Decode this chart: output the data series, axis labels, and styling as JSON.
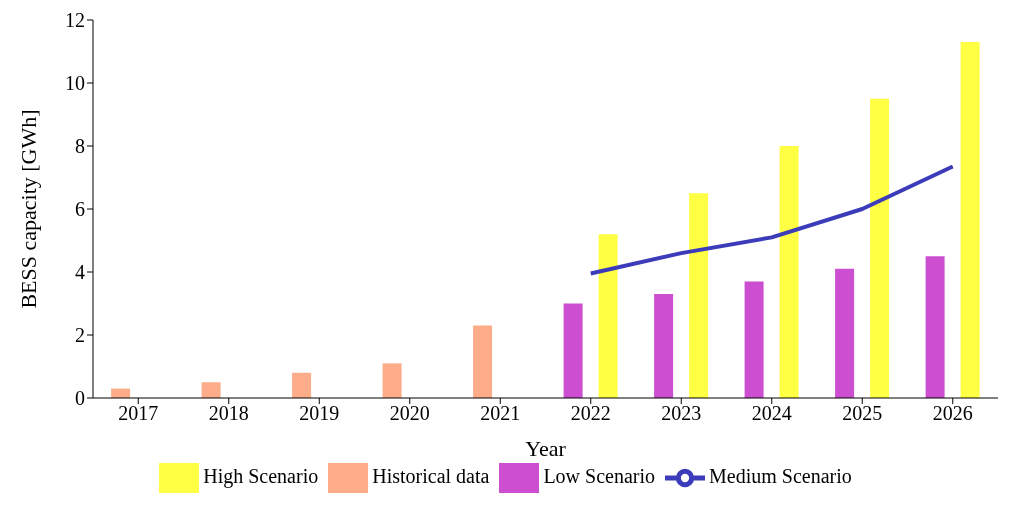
{
  "chart_data": {
    "type": "bar",
    "xlabel": "Year",
    "ylabel": "BESS capacity [GWh]",
    "categories": [
      "2017",
      "2018",
      "2019",
      "2020",
      "2021",
      "2022",
      "2023",
      "2024",
      "2025",
      "2026"
    ],
    "series": [
      {
        "name": "Historical data",
        "color": "#fcac88",
        "values": [
          0.3,
          0.5,
          0.8,
          1.1,
          2.3,
          null,
          null,
          null,
          null,
          null
        ]
      },
      {
        "name": "Low Scenario",
        "color": "#cc4fd1",
        "values": [
          null,
          null,
          null,
          null,
          null,
          3.0,
          3.3,
          3.7,
          4.1,
          4.5
        ]
      },
      {
        "name": "High Scenario",
        "color": "#ffff44",
        "values": [
          null,
          null,
          null,
          null,
          null,
          5.2,
          6.5,
          8.0,
          9.5,
          11.3
        ]
      },
      {
        "name": "Medium Scenario",
        "type": "line",
        "color": "#3c3cbb",
        "values": [
          null,
          null,
          null,
          null,
          null,
          3.95,
          4.6,
          5.1,
          6.0,
          7.35
        ]
      }
    ],
    "ylim": [
      0,
      12
    ],
    "yticks": [
      0,
      2,
      4,
      6,
      8,
      10,
      12
    ],
    "grid": false,
    "legend": "bottom",
    "marker": "none"
  }
}
